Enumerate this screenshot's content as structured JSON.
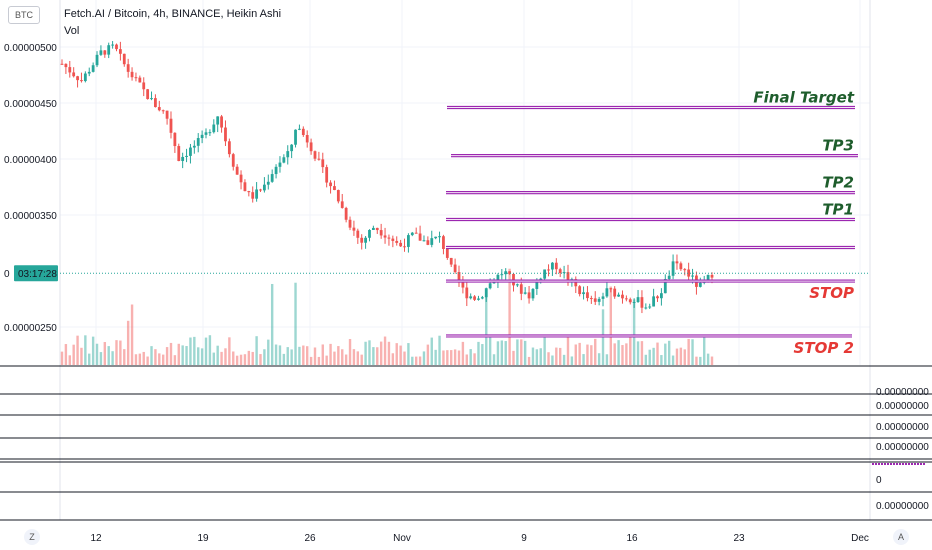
{
  "header": {
    "symbol_badge": "BTC",
    "title": "Fetch.AI / Bitcoin, 4h, BINANCE, Heikin Ashi",
    "subtitle": "Vol"
  },
  "price_tag": {
    "prefix": "0",
    "countdown": "03:17:28"
  },
  "buttons": {
    "left": "Z",
    "right": "A"
  },
  "chart_data": {
    "type": "candlestick",
    "y_ticks": [
      {
        "label": "0.00000500",
        "value": 500
      },
      {
        "label": "0.00000450",
        "value": 450
      },
      {
        "label": "0.00000400",
        "value": 400
      },
      {
        "label": "0.00000350",
        "value": 350
      },
      {
        "label": "0.00000250",
        "value": 250
      }
    ],
    "ylim": [
      233,
      520
    ],
    "x_ticks": [
      "12",
      "19",
      "26",
      "Nov",
      "9",
      "16",
      "23",
      "Dec"
    ],
    "price_path": [
      [
        0,
        485
      ],
      [
        3,
        470
      ],
      [
        6,
        495
      ],
      [
        8,
        500
      ],
      [
        10,
        480
      ],
      [
        12,
        465
      ],
      [
        14,
        450
      ],
      [
        16,
        440
      ],
      [
        18,
        400
      ],
      [
        20,
        410
      ],
      [
        22,
        420
      ],
      [
        24,
        440
      ],
      [
        25,
        420
      ],
      [
        27,
        385
      ],
      [
        29,
        365
      ],
      [
        31,
        375
      ],
      [
        33,
        395
      ],
      [
        35,
        405
      ],
      [
        36,
        430
      ],
      [
        38,
        415
      ],
      [
        40,
        390
      ],
      [
        42,
        370
      ],
      [
        44,
        345
      ],
      [
        46,
        325
      ],
      [
        48,
        340
      ],
      [
        50,
        332
      ],
      [
        52,
        322
      ],
      [
        54,
        332
      ],
      [
        56,
        326
      ],
      [
        58,
        330
      ],
      [
        59,
        318
      ],
      [
        60,
        300
      ],
      [
        62,
        280
      ],
      [
        64,
        275
      ],
      [
        66,
        290
      ],
      [
        68,
        300
      ],
      [
        70,
        285
      ],
      [
        72,
        278
      ],
      [
        74,
        300
      ],
      [
        76,
        305
      ],
      [
        78,
        292
      ],
      [
        80,
        280
      ],
      [
        82,
        270
      ],
      [
        84,
        283
      ],
      [
        86,
        278
      ],
      [
        88,
        275
      ],
      [
        90,
        268
      ],
      [
        92,
        280
      ],
      [
        94,
        305
      ],
      [
        96,
        300
      ],
      [
        98,
        285
      ],
      [
        99,
        290
      ],
      [
        100,
        298
      ]
    ],
    "annotations": [
      {
        "label": "Final Target",
        "price": 446,
        "color": "#1e5d2c"
      },
      {
        "label": "TP3",
        "price": 403,
        "color": "#1e5d2c"
      },
      {
        "label": "TP2",
        "price": 370,
        "color": "#1e5d2c"
      },
      {
        "label": "TP1",
        "price": 346,
        "color": "#1e5d2c"
      },
      {
        "label": "",
        "price": 321,
        "color": "#9c27b0"
      },
      {
        "label": "STOP",
        "price": 291,
        "color": "#e53935"
      },
      {
        "label": "STOP 2",
        "price": 242,
        "color": "#e53935"
      }
    ],
    "indicator_values": [
      "0.00000000",
      "0.00000000",
      "0.00000000",
      "0.00000000",
      "0",
      "0.00000000"
    ],
    "colors": {
      "up": "#26a69a",
      "down": "#ef5350",
      "line": "#9c27b0"
    }
  }
}
